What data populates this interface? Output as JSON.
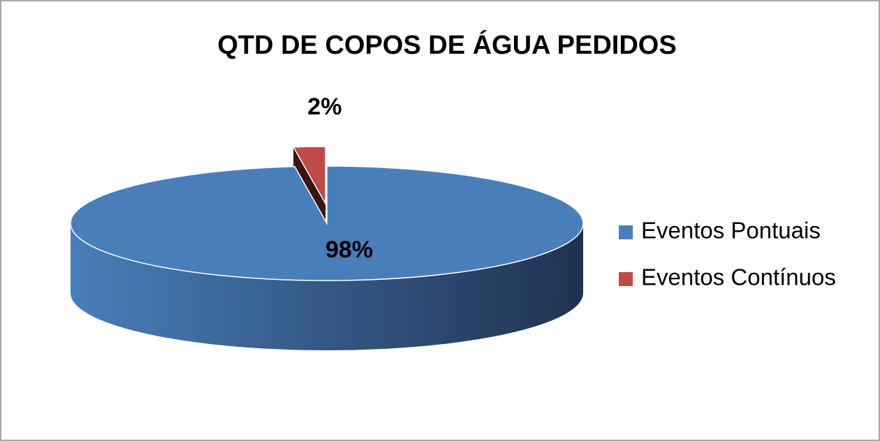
{
  "chart_data": {
    "type": "pie",
    "title": "QTD DE COPOS DE ÁGUA PEDIDOS",
    "categories": [
      "Eventos Pontuais",
      "Eventos Contínuos"
    ],
    "values": [
      98,
      2
    ],
    "value_labels": [
      "98%",
      "2%"
    ],
    "colors": [
      "#4a7ebb",
      "#be4b48"
    ],
    "legend": "right"
  }
}
